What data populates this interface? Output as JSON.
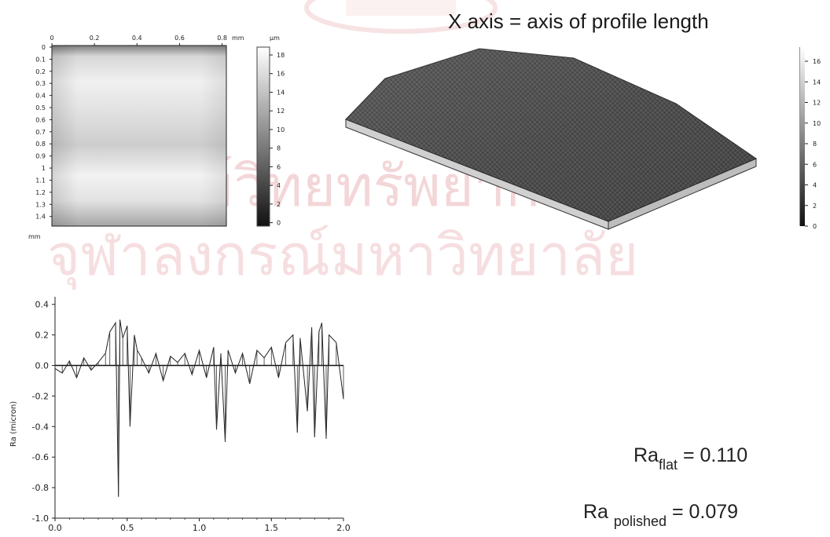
{
  "colors": {
    "watermark": "#c2202c",
    "ink": "#111111",
    "panel_bg": "#ffffff"
  },
  "heading": "X axis = axis of profile length",
  "watermark_text": {
    "line1": "ศูนย์วิทยทรัพยากร",
    "line2": "จุฬาลงกรณ์มหาวิทยาลัย"
  },
  "height_map": {
    "x_unit": "mm",
    "y_unit": "mm",
    "scale_unit": "µm",
    "x_ticks": [
      "0",
      "0.2",
      "0.4",
      "0.6",
      "0.8"
    ],
    "y_ticks": [
      "0",
      "0.1",
      "0.2",
      "0.3",
      "0.4",
      "0.5",
      "0.6",
      "0.7",
      "0.8",
      "0.9",
      "1",
      "1.1",
      "1.2",
      "1.3",
      "1.4"
    ],
    "scale_ticks": [
      "16",
      "14",
      "12",
      "10",
      "8",
      "6",
      "4",
      "2",
      "0"
    ],
    "scale_ticks_full": [
      "18",
      "16",
      "14",
      "12",
      "10",
      "8",
      "6",
      "4",
      "2",
      "0"
    ]
  },
  "surface_3d": {
    "scale_ticks": [
      "16",
      "14",
      "12",
      "10",
      "8",
      "6",
      "4",
      "2",
      "0"
    ]
  },
  "chart_data": {
    "type": "line",
    "title": "",
    "xlabel": "",
    "ylabel": "Ra (micron)",
    "xlim": [
      0.0,
      2.0
    ],
    "ylim": [
      -1.0,
      0.45
    ],
    "x_ticks": [
      "0.0",
      "0.5",
      "1.0",
      "1.5",
      "2.0"
    ],
    "y_ticks": [
      "0.4",
      "0.2",
      "0.0",
      "-0.2",
      "-0.4",
      "-0.6",
      "-0.8",
      "-1.0"
    ],
    "baseline": 0.0,
    "series": [
      {
        "x": [
          0.0,
          0.05,
          0.1,
          0.15,
          0.2,
          0.25,
          0.3,
          0.35,
          0.38,
          0.42,
          0.44,
          0.45,
          0.47,
          0.5,
          0.52,
          0.55,
          0.57,
          0.6,
          0.65,
          0.7,
          0.75,
          0.8,
          0.85,
          0.9,
          0.95,
          1.0,
          1.05,
          1.1,
          1.12,
          1.15,
          1.18,
          1.2,
          1.25,
          1.3,
          1.35,
          1.4,
          1.45,
          1.5,
          1.55,
          1.6,
          1.65,
          1.68,
          1.7,
          1.75,
          1.78,
          1.8,
          1.83,
          1.85,
          1.88,
          1.9,
          1.95,
          2.0
        ],
        "values": [
          -0.02,
          -0.05,
          0.03,
          -0.08,
          0.05,
          -0.03,
          0.02,
          0.08,
          0.22,
          0.28,
          -0.86,
          0.3,
          0.18,
          0.26,
          -0.4,
          0.2,
          0.1,
          0.05,
          -0.05,
          0.08,
          -0.1,
          0.06,
          0.02,
          0.08,
          -0.06,
          0.1,
          -0.08,
          0.12,
          -0.42,
          0.08,
          -0.5,
          0.1,
          -0.05,
          0.08,
          -0.12,
          0.1,
          0.05,
          0.12,
          -0.08,
          0.15,
          0.2,
          -0.44,
          0.18,
          -0.3,
          0.25,
          -0.47,
          0.22,
          0.28,
          -0.48,
          0.2,
          0.15,
          -0.22
        ]
      }
    ]
  },
  "results": {
    "flat": {
      "base": "Ra",
      "sub": "flat",
      "value": "= 0.110"
    },
    "polished": {
      "base": "Ra",
      "sub": "polished",
      "value": "= 0.079"
    }
  }
}
